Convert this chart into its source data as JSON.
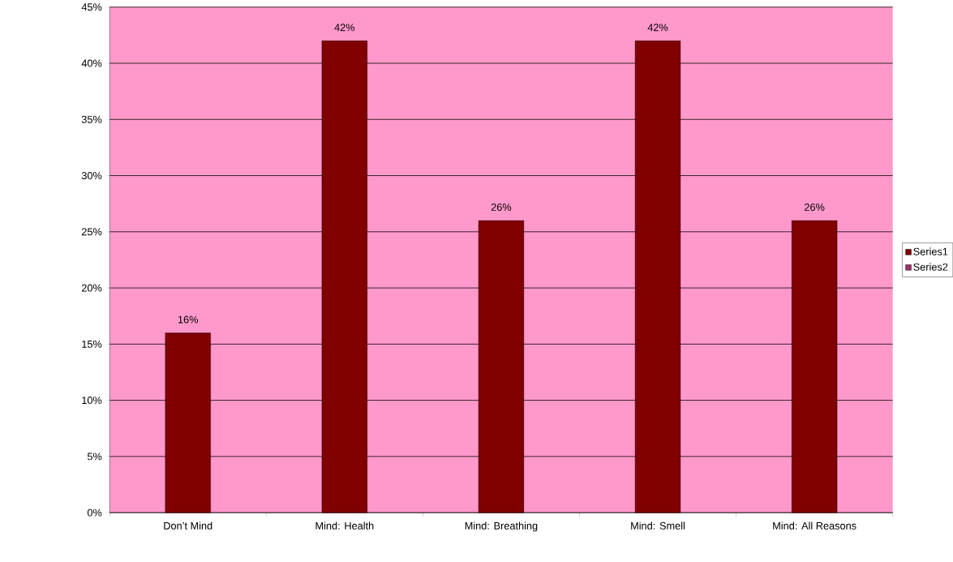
{
  "chart_data": {
    "type": "bar",
    "categories": [
      "Don’t Mind",
      "Mind: Health",
      "Mind: Breathing",
      "Mind: Smell",
      "Mind: All Reasons"
    ],
    "series": [
      {
        "name": "Series1",
        "color": "#800000",
        "values": [
          16,
          42,
          26,
          42,
          26
        ],
        "value_labels": [
          "16%",
          "42%",
          "26%",
          "42%",
          "26%"
        ]
      },
      {
        "name": "Series2",
        "color": "#993366",
        "values": [
          null,
          null,
          null,
          null,
          null
        ]
      }
    ],
    "ylim": [
      0,
      45
    ],
    "yticks": [
      {
        "value": 0,
        "label": "0%"
      },
      {
        "value": 5,
        "label": "5%"
      },
      {
        "value": 10,
        "label": "10%"
      },
      {
        "value": 15,
        "label": "15%"
      },
      {
        "value": 20,
        "label": "20%"
      },
      {
        "value": 25,
        "label": "25%"
      },
      {
        "value": 30,
        "label": "30%"
      },
      {
        "value": 35,
        "label": "35%"
      },
      {
        "value": 40,
        "label": "40%"
      },
      {
        "value": 45,
        "label": "45%"
      }
    ],
    "grid": "y",
    "legend": "right"
  }
}
